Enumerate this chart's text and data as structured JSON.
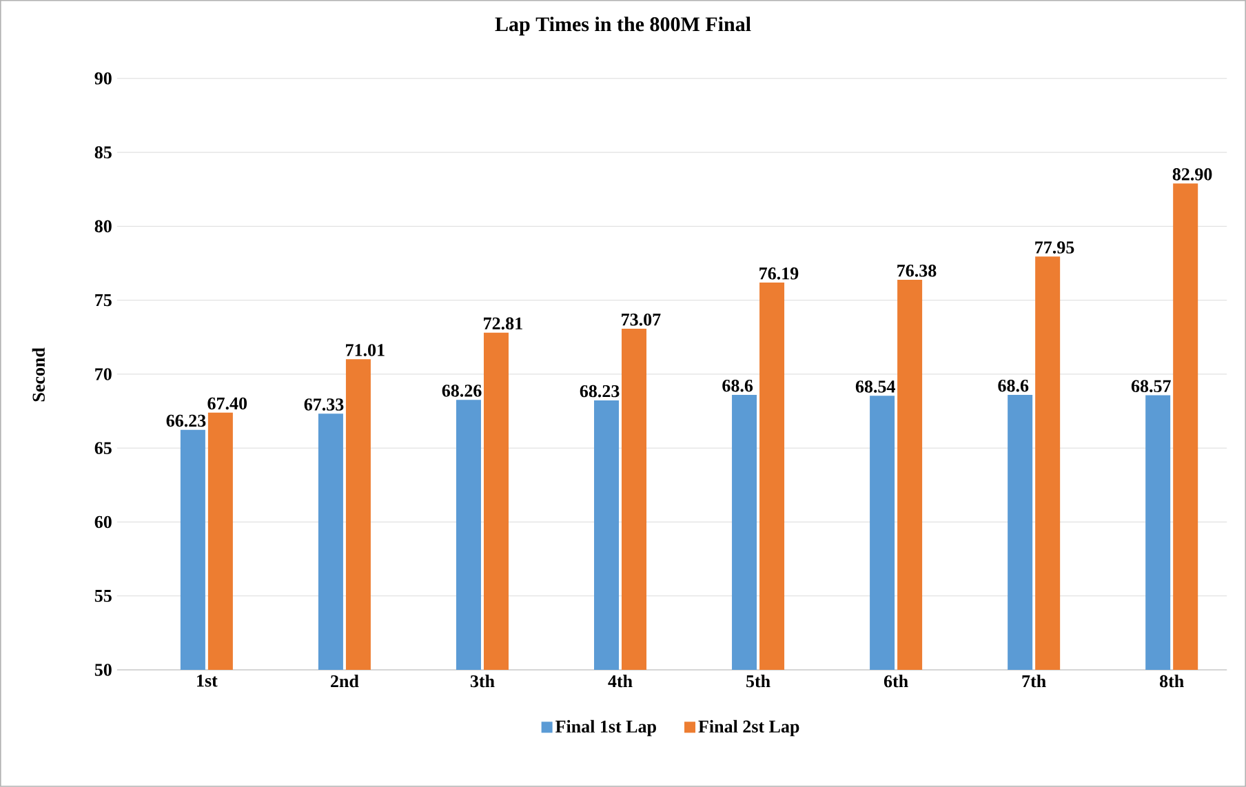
{
  "chart_data": {
    "type": "bar",
    "title": "Lap Times in the 800M Final",
    "ylabel": "Second",
    "categories": [
      "1st",
      "2nd",
      "3th",
      "4th",
      "5th",
      "6th",
      "7th",
      "8th"
    ],
    "series": [
      {
        "name": "Final 1st Lap",
        "color": "#5b9bd5",
        "values": [
          66.23,
          67.33,
          68.26,
          68.23,
          68.6,
          68.54,
          68.6,
          68.57
        ],
        "value_labels": [
          "66.23",
          "67.33",
          "68.26",
          "68.23",
          "68.6",
          "68.54",
          "68.6",
          "68.57"
        ]
      },
      {
        "name": "Final 2st Lap",
        "color": "#ed7d31",
        "values": [
          67.4,
          71.01,
          72.81,
          73.07,
          76.19,
          76.38,
          77.95,
          82.9
        ],
        "value_labels": [
          "67.40",
          "71.01",
          "72.81",
          "73.07",
          "76.19",
          "76.38",
          "77.95",
          "82.90"
        ]
      }
    ],
    "ylim": [
      50,
      90
    ],
    "yticks": [
      50,
      55,
      60,
      65,
      70,
      75,
      80,
      85,
      90
    ],
    "grid": "y",
    "legend": "bottom"
  }
}
